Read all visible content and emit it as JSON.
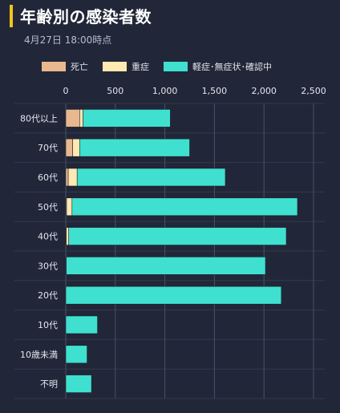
{
  "header": {
    "title": "年齢別の感染者数",
    "subtitle": "4月27日 18:00時点"
  },
  "legend": [
    {
      "label": "死亡",
      "color": "#e9b88e"
    },
    {
      "label": "重症",
      "color": "#fde9b1"
    },
    {
      "label": "軽症･無症状･確認中",
      "color": "#3fe0cf"
    }
  ],
  "chart_data": {
    "type": "bar",
    "orientation": "horizontal",
    "stacked": true,
    "categories": [
      "80代以上",
      "70代",
      "60代",
      "50代",
      "40代",
      "30代",
      "20代",
      "10代",
      "10歳未満",
      "不明"
    ],
    "series": [
      {
        "name": "死亡",
        "values": [
          140,
          70,
          25,
          8,
          5,
          0,
          0,
          0,
          0,
          0
        ]
      },
      {
        "name": "重症",
        "values": [
          35,
          70,
          90,
          55,
          25,
          5,
          0,
          0,
          0,
          0
        ]
      },
      {
        "name": "軽症･無症状･確認中",
        "values": [
          880,
          1110,
          1495,
          2275,
          2195,
          2010,
          2175,
          320,
          215,
          260
        ]
      }
    ],
    "x_ticks": [
      "0",
      "500",
      "1,000",
      "1,500",
      "2,000",
      "2,500"
    ],
    "xlim": [
      0,
      2500
    ],
    "grid": true,
    "legend_position": "top"
  }
}
